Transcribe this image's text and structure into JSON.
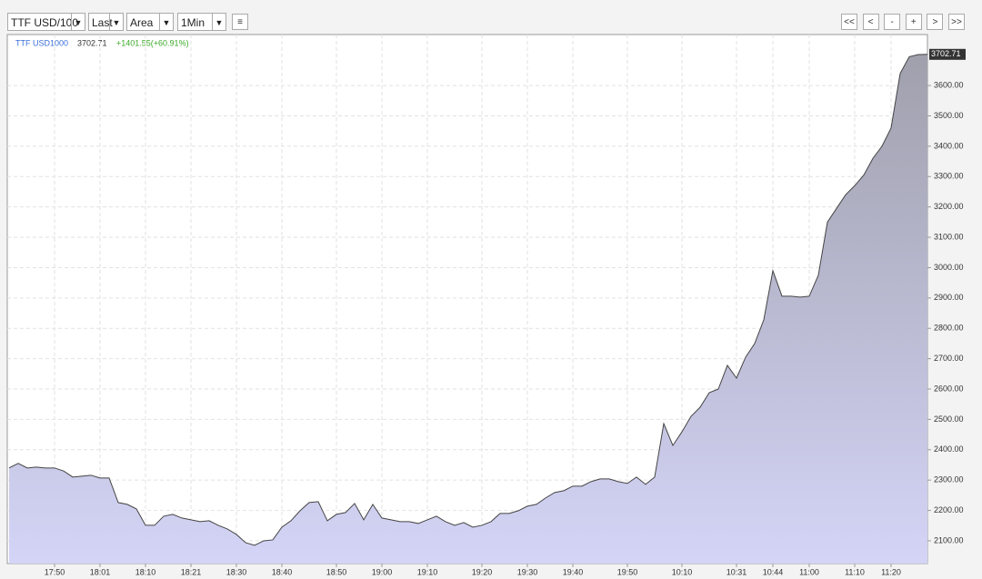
{
  "toolbar": {
    "selects": [
      "TTF USD/100",
      "Last",
      "Area",
      "1Min"
    ],
    "buttons": [
      "<<",
      "<",
      "-",
      "+",
      ">",
      ">>"
    ]
  },
  "chart_data": {
    "type": "area",
    "annotations": [
      "3702.71",
      "+1401.55(+60.91%)"
    ],
    "categories": [
      null,
      null,
      null,
      null,
      null,
      "17:50",
      null,
      null,
      null,
      null,
      "18:01",
      null,
      null,
      null,
      null,
      "18:10",
      null,
      null,
      null,
      null,
      "18:21",
      null,
      null,
      null,
      null,
      "18:30",
      null,
      null,
      null,
      null,
      "18:40",
      null,
      null,
      null,
      null,
      null,
      "18:50",
      null,
      null,
      null,
      null,
      "19:00",
      null,
      null,
      null,
      null,
      "19:10",
      null,
      null,
      null,
      null,
      null,
      "19:20",
      null,
      null,
      null,
      null,
      "19:30",
      null,
      null,
      null,
      null,
      "19:40",
      null,
      null,
      null,
      null,
      null,
      "19:50",
      null,
      null,
      null,
      null,
      null,
      "10:10",
      null,
      null,
      null,
      null,
      null,
      "10:31",
      null,
      null,
      null,
      "10:44",
      null,
      null,
      null,
      "11:00",
      null,
      null,
      null,
      null,
      "11:10",
      null,
      null,
      null,
      "11:20",
      null,
      null,
      null,
      null
    ],
    "series": [
      {
        "name": "TTF USD1000",
        "color": "#444444",
        "values": [
          2340,
          2355,
          2340,
          2343,
          2340,
          2340,
          2330,
          2310,
          2313,
          2316,
          2307,
          2307,
          2226,
          2220,
          2205,
          2151,
          2151,
          2181,
          2187,
          2175,
          2169,
          2163,
          2166,
          2151,
          2139,
          2121,
          2094,
          2085,
          2100,
          2103,
          2145,
          2166,
          2199,
          2226,
          2229,
          2166,
          2187,
          2193,
          2223,
          2169,
          2220,
          2175,
          2169,
          2163,
          2163,
          2157,
          2169,
          2181,
          2163,
          2151,
          2160,
          2145,
          2151,
          2163,
          2190,
          2190,
          2199,
          2214,
          2220,
          2241,
          2259,
          2265,
          2280,
          2280,
          2295,
          2304,
          2304,
          2295,
          2289,
          2310,
          2286,
          2310,
          2486,
          2414,
          2459,
          2510,
          2540,
          2588,
          2600,
          2678,
          2636,
          2705,
          2750,
          2828,
          2990,
          2906,
          2906,
          2903,
          2906,
          2975,
          3150,
          3195,
          3240,
          3270,
          3305,
          3360,
          3400,
          3460,
          3640,
          3695,
          3702,
          3702.71
        ]
      }
    ],
    "ylim": [
      2025,
      3768
    ],
    "yticks": [
      {
        "value": 2100,
        "label": "2100.00"
      },
      {
        "value": 2200,
        "label": "2200.00"
      },
      {
        "value": 2300,
        "label": "2300.00"
      },
      {
        "value": 2400,
        "label": "2400.00"
      },
      {
        "value": 2500,
        "label": "2500.00"
      },
      {
        "value": 2600,
        "label": "2600.00"
      },
      {
        "value": 2700,
        "label": "2700.00"
      },
      {
        "value": 2800,
        "label": "2800.00"
      },
      {
        "value": 2900,
        "label": "2900.00"
      },
      {
        "value": 3000,
        "label": "3000.00"
      },
      {
        "value": 3100,
        "label": "3100.00"
      },
      {
        "value": 3200,
        "label": "3200.00"
      },
      {
        "value": 3300,
        "label": "3300.00"
      },
      {
        "value": 3400,
        "label": "3400.00"
      },
      {
        "value": 3500,
        "label": "3500.00"
      },
      {
        "value": 3600,
        "label": "3600.00"
      }
    ],
    "grid": true,
    "fill_top": "#9e9eaa",
    "fill_bottom": "#d4d4f7"
  }
}
